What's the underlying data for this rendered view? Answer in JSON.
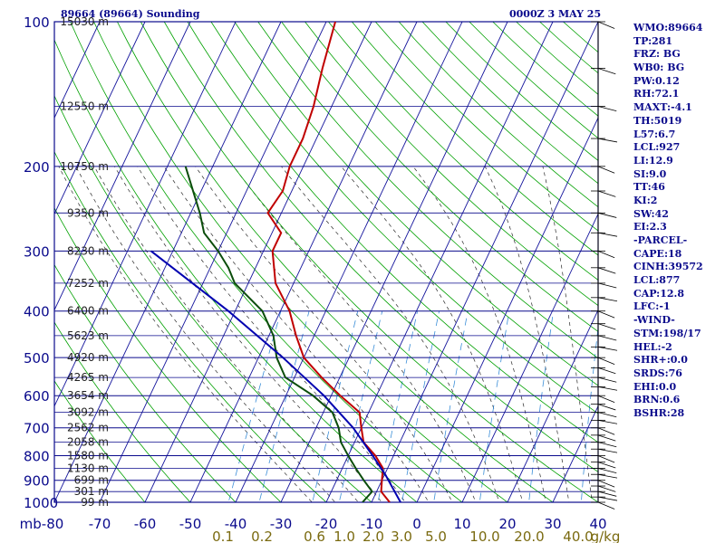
{
  "header": {
    "title": "89664 (89664) Sounding",
    "time": "0000Z  3 MAY 25"
  },
  "colors": {
    "frame": "#0a0a8c",
    "isotherm": "#14149c",
    "dry_adiabat": "#00a000",
    "moist_adiabat": "#2a2a2a",
    "mixing_ratio": "#3a8ed8",
    "temperature": "#c00000",
    "dewpoint": "#0b4d0b",
    "parcel": "#0000b0",
    "mixing_label": "#7a6a10",
    "wind": "#000000"
  },
  "indices": [
    "WMO:89664",
    "TP:281",
    "FRZ: BG",
    "WB0: BG",
    "PW:0.12",
    "RH:72.1",
    "MAXT:-4.1",
    "TH:5019",
    "L57:6.7",
    "LCL:927",
    "LI:12.9",
    "SI:9.0",
    "TT:46",
    "KI:2",
    "SW:42",
    "EI:2.3",
    "-PARCEL-",
    "CAPE:18",
    "CINH:39572",
    "LCL:877",
    "CAP:12.8",
    "LFC:-1",
    "-WIND-",
    "STM:198/17",
    "HEL:-2",
    "SHR+:0.0",
    "SRDS:76",
    "EHI:0.0",
    "BRN:0.6",
    "BSHR:28"
  ],
  "chart_data": {
    "type": "line",
    "title": "89664 (89664) Sounding",
    "xlabel": "",
    "ylabel": "mb",
    "xlim": [
      -80,
      40
    ],
    "ylim": [
      1000,
      100
    ],
    "y_scale": "log",
    "grid": true,
    "pressure_ticks": [
      100,
      200,
      300,
      400,
      500,
      600,
      700,
      800,
      900,
      1000
    ],
    "temperature_ticks": [
      -80,
      -70,
      -60,
      -50,
      -40,
      -30,
      -20,
      -10,
      0,
      10,
      20,
      30,
      40
    ],
    "temperature_tick_labels": [
      "mb-80",
      "-70",
      "-60",
      "-50",
      "-40",
      "-30",
      "-20",
      "-10",
      "0",
      "10",
      "20",
      "30",
      "40"
    ],
    "mixing_ratio_values": [
      0.1,
      0.2,
      0.6,
      1.0,
      2.0,
      3.0,
      5.0,
      10.0,
      20.0,
      40.0
    ],
    "mixing_ratio_labels": [
      "0.1",
      "0.2",
      "0.6",
      "1.0",
      "2.0",
      "3.0",
      "5.0",
      "10.0",
      "20.0",
      "40.0",
      "g/kg"
    ],
    "height_labels": [
      {
        "p": 100,
        "label": "15030 m"
      },
      {
        "p": 150,
        "label": "12550 m"
      },
      {
        "p": 200,
        "label": "10750 m"
      },
      {
        "p": 250,
        "label": "9350 m"
      },
      {
        "p": 300,
        "label": "8230 m"
      },
      {
        "p": 350,
        "label": "7252 m"
      },
      {
        "p": 400,
        "label": "6400 m"
      },
      {
        "p": 450,
        "label": "5623 m"
      },
      {
        "p": 500,
        "label": "4920 m"
      },
      {
        "p": 550,
        "label": "4265 m"
      },
      {
        "p": 600,
        "label": "3654 m"
      },
      {
        "p": 650,
        "label": "3092 m"
      },
      {
        "p": 700,
        "label": "2562 m"
      },
      {
        "p": 750,
        "label": "2058 m"
      },
      {
        "p": 800,
        "label": "1580 m"
      },
      {
        "p": 850,
        "label": "1130 m"
      },
      {
        "p": 900,
        "label": "699 m"
      },
      {
        "p": 950,
        "label": "301 m"
      },
      {
        "p": 1000,
        "label": "99 m"
      }
    ],
    "series": [
      {
        "name": "Temperature",
        "points": [
          [
            1000,
            -6
          ],
          [
            950,
            -9
          ],
          [
            900,
            -10
          ],
          [
            850,
            -11
          ],
          [
            800,
            -14
          ],
          [
            750,
            -18
          ],
          [
            700,
            -20
          ],
          [
            650,
            -22
          ],
          [
            600,
            -28
          ],
          [
            550,
            -34
          ],
          [
            500,
            -40
          ],
          [
            450,
            -44
          ],
          [
            400,
            -48
          ],
          [
            350,
            -54
          ],
          [
            300,
            -58
          ],
          [
            275,
            -58
          ],
          [
            250,
            -63
          ],
          [
            225,
            -62
          ],
          [
            200,
            -63
          ],
          [
            175,
            -63
          ],
          [
            150,
            -64
          ],
          [
            125,
            -66
          ],
          [
            100,
            -68
          ]
        ]
      },
      {
        "name": "Dewpoint",
        "points": [
          [
            1000,
            -12
          ],
          [
            950,
            -11
          ],
          [
            900,
            -14
          ],
          [
            850,
            -17
          ],
          [
            800,
            -20
          ],
          [
            750,
            -23
          ],
          [
            700,
            -25
          ],
          [
            650,
            -28
          ],
          [
            600,
            -34
          ],
          [
            550,
            -42
          ],
          [
            500,
            -46
          ],
          [
            450,
            -49
          ],
          [
            400,
            -54
          ],
          [
            350,
            -63
          ],
          [
            325,
            -66
          ],
          [
            300,
            -70
          ],
          [
            275,
            -75
          ],
          [
            250,
            -78
          ],
          [
            200,
            -86
          ]
        ]
      },
      {
        "name": "Parcel",
        "points": [
          [
            1000,
            -3.6
          ],
          [
            877,
            -9.8
          ],
          [
            800,
            -14.6
          ],
          [
            700,
            -21.8
          ],
          [
            600,
            -31.6
          ],
          [
            500,
            -44.6
          ],
          [
            400,
            -61.5
          ],
          [
            300,
            -84.8
          ]
        ]
      }
    ]
  }
}
